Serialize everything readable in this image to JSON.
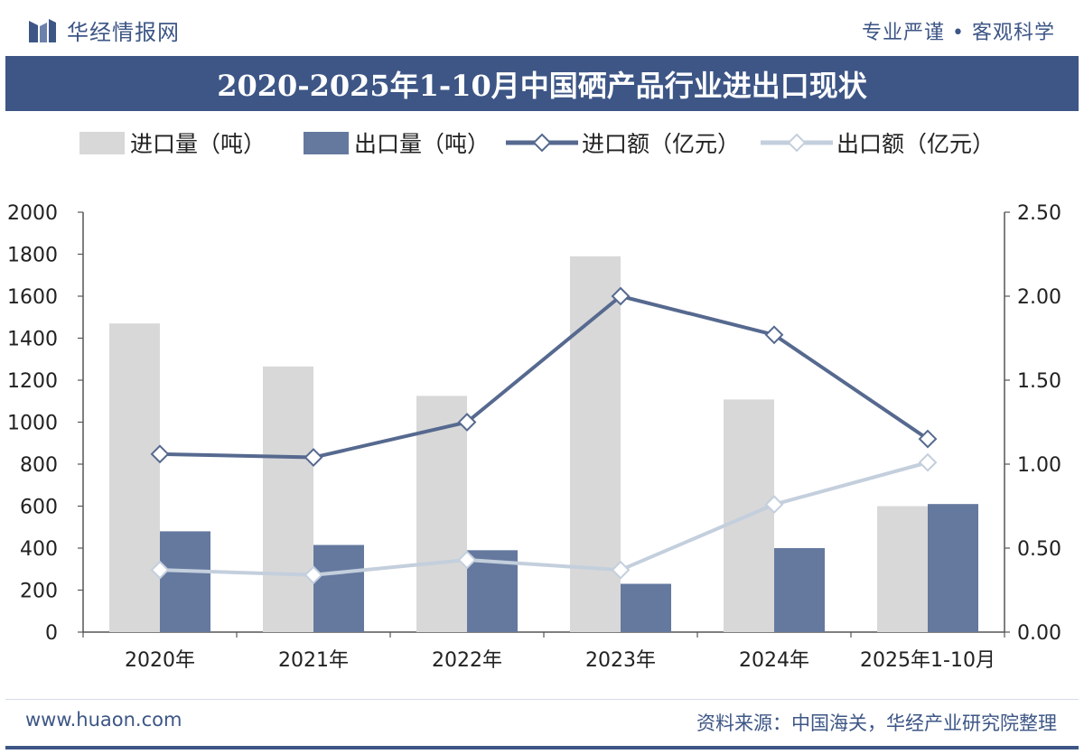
{
  "header": {
    "brand_name": "华经情报网",
    "slogan": "专业严谨 • 客观科学"
  },
  "title": "2020-2025年1-10月中国硒产品行业进出口现状",
  "footer": {
    "url": "www.huaon.com",
    "source": "资料来源：中国海关，华经产业研究院整理"
  },
  "colors": {
    "import_volume": "#d8d8d8",
    "export_volume": "#65799f",
    "import_value": "#56698f",
    "export_value": "#c4cfdd",
    "brand": "#3d5686"
  },
  "chart_data": {
    "type": "bar",
    "categories": [
      "2020年",
      "2021年",
      "2022年",
      "2023年",
      "2024年",
      "2025年1-10月"
    ],
    "series": [
      {
        "name": "进口量（吨）",
        "type": "bar",
        "axis": "left",
        "values": [
          1470,
          1265,
          1125,
          1790,
          1108,
          600
        ]
      },
      {
        "name": "出口量（吨）",
        "type": "bar",
        "axis": "left",
        "values": [
          480,
          415,
          390,
          230,
          400,
          610
        ]
      },
      {
        "name": "进口额（亿元）",
        "type": "line",
        "axis": "right",
        "values": [
          1.06,
          1.04,
          1.25,
          2.0,
          1.77,
          1.15
        ]
      },
      {
        "name": "出口额（亿元）",
        "type": "line",
        "axis": "right",
        "values": [
          0.37,
          0.34,
          0.43,
          0.37,
          0.76,
          1.01
        ]
      }
    ],
    "left_axis": {
      "min": 0,
      "max": 2000,
      "ticks": [
        "0",
        "200",
        "400",
        "600",
        "800",
        "1000",
        "1200",
        "1400",
        "1600",
        "1800",
        "2000"
      ]
    },
    "right_axis": {
      "min": 0,
      "max": 2.5,
      "ticks": [
        "0.00",
        "0.50",
        "1.00",
        "1.50",
        "2.00",
        "2.50"
      ]
    },
    "grid": false,
    "legend_position": "top"
  }
}
